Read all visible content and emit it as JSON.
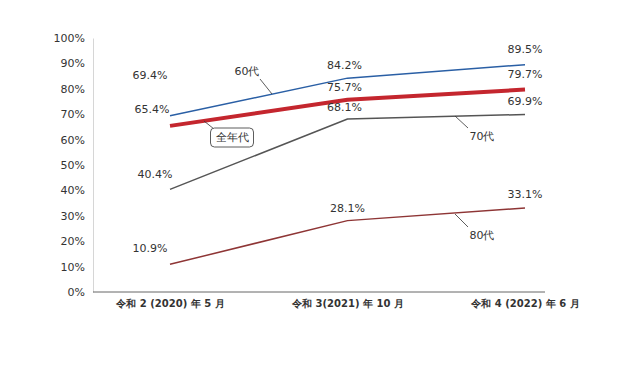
{
  "chart_data": {
    "type": "line",
    "categories": [
      "令和 2 (2020) 年 5 月",
      "令和 3(2021) 年 10 月",
      "令和 4 (2022) 年 6 月"
    ],
    "series": [
      {
        "name": "60代",
        "color": "#2a5fa5",
        "line_style": "solid",
        "values": [
          69.4,
          84.2,
          89.5
        ],
        "value_labels": [
          "69.4%",
          "84.2%",
          "89.5%"
        ]
      },
      {
        "name": "全年代",
        "color": "#c4262e",
        "line_style": "thick",
        "values": [
          65.4,
          75.7,
          79.7
        ],
        "value_labels": [
          "65.4%",
          "75.7%",
          "79.7%"
        ]
      },
      {
        "name": "70代",
        "color": "#555555",
        "line_style": "solid",
        "values": [
          40.4,
          68.1,
          69.9
        ],
        "value_labels": [
          "40.4%",
          "68.1%",
          "69.9%"
        ]
      },
      {
        "name": "80代",
        "color": "#8e3535",
        "line_style": "solid",
        "values": [
          10.9,
          28.1,
          33.1
        ],
        "value_labels": [
          "10.9%",
          "28.1%",
          "33.1%"
        ]
      }
    ],
    "ylim": [
      0,
      100
    ],
    "yticks": [
      {
        "value": 0,
        "label": "0%"
      },
      {
        "value": 10,
        "label": "10%"
      },
      {
        "value": 20,
        "label": "20%"
      },
      {
        "value": 30,
        "label": "30%"
      },
      {
        "value": 40,
        "label": "40%"
      },
      {
        "value": 50,
        "label": "50%"
      },
      {
        "value": 60,
        "label": "60%"
      },
      {
        "value": 70,
        "label": "70%"
      },
      {
        "value": 80,
        "label": "80%"
      },
      {
        "value": 90,
        "label": "90%"
      },
      {
        "value": 100,
        "label": "100%"
      }
    ],
    "grid": false,
    "data_labels": true
  }
}
